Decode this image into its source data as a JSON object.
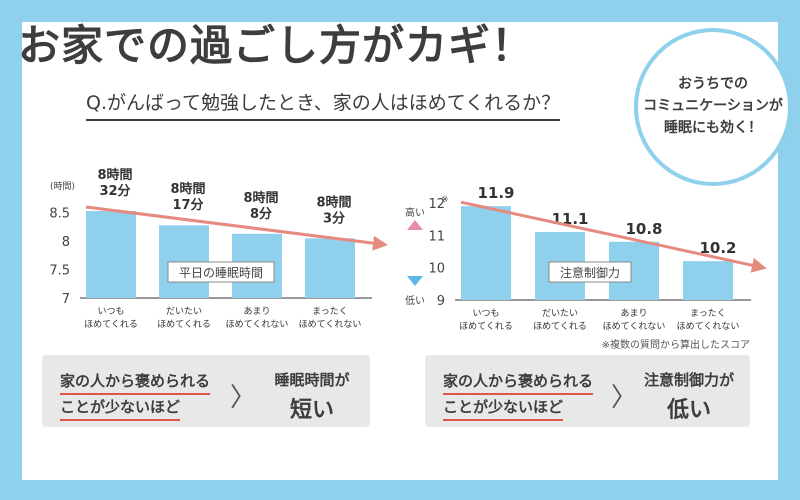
{
  "headline": "お家での過ごし方がカギ！",
  "question": "Q.がんばって勉強したとき、家の人はほめてくれるか？",
  "bubble_text": "おうちでの\nコミュニケーションが\n睡眠にも効く！",
  "note": "※複数の質問から算出したスコア",
  "colors": {
    "bar": "#8fd0ec",
    "arrow": "#e58a7e",
    "background": "#8fd0ec",
    "underline": "#e2554c"
  },
  "chart_data": [
    {
      "type": "bar",
      "categories": [
        "いつも\nほめてくれる",
        "だいたい\nほめてくれる",
        "あまり\nほめてくれない",
        "まったく\nほめてくれない"
      ],
      "values": [
        8.53,
        8.28,
        8.13,
        8.05
      ],
      "data_labels": [
        "8時間\n32分",
        "8時間\n17分",
        "8時間\n8分",
        "8時間\n3分"
      ],
      "yticks": [
        "8.5",
        "8",
        "7.5",
        "7"
      ],
      "ytick_values": [
        8.5,
        8,
        7.5,
        7
      ],
      "ylim": [
        7,
        8.9
      ],
      "yunit": "(時間)",
      "inner_label": "平日の睡眠時間",
      "trend_arrow": true
    },
    {
      "type": "bar",
      "categories": [
        "いつも\nほめてくれる",
        "だいたい\nほめてくれる",
        "あまり\nほめてくれない",
        "まったく\nほめてくれない"
      ],
      "values": [
        11.9,
        11.1,
        10.8,
        10.2
      ],
      "data_labels": [
        "11.9",
        "11.1",
        "10.8",
        "10.2"
      ],
      "yticks": [
        "12",
        "11",
        "10",
        "9"
      ],
      "ytick_values": [
        12,
        11,
        10,
        9
      ],
      "ylim": [
        9,
        12.4
      ],
      "ymark": "※",
      "high_label": "高い",
      "low_label": "低い",
      "inner_label": "注意制御力",
      "trend_arrow": true
    }
  ],
  "summaries": [
    {
      "cond1": "家の人から褒められる",
      "cond2": "ことが少ないほど",
      "arrow": "〉",
      "result1": "睡眠時間が",
      "result2": "短い"
    },
    {
      "cond1": "家の人から褒められる",
      "cond2": "ことが少ないほど",
      "arrow": "〉",
      "result1": "注意制御力が",
      "result2": "低い"
    }
  ]
}
